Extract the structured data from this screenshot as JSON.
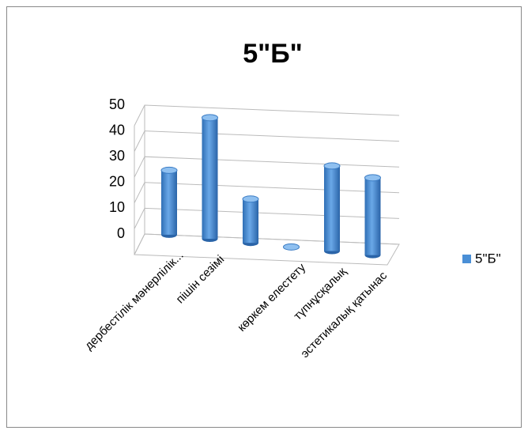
{
  "chart_data": {
    "type": "bar3d",
    "title": "5\"Б\"",
    "categories": [
      "дербестілік мәнерлілік...",
      "пішін сезімі",
      null,
      "көркем елестету",
      "түпнұсқалық",
      "эстетикалық қатынас"
    ],
    "series": [
      {
        "name": "5\"Б\"",
        "color": "#4a8fd6",
        "values": [
          25,
          47,
          17,
          0,
          33,
          30
        ]
      }
    ],
    "ylim": [
      0,
      50
    ],
    "yticks": [
      0,
      10,
      20,
      30,
      40,
      50
    ],
    "grid": true,
    "legend": "right"
  }
}
